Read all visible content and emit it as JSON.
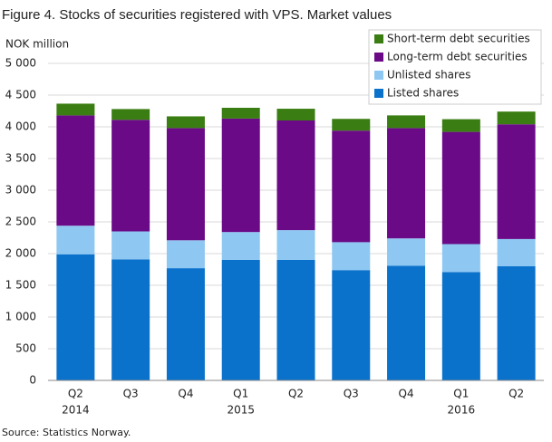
{
  "chart_data": {
    "type": "stacked_bar",
    "title": "Figure 4. Stocks of securities registered with VPS. Market values",
    "y_axis_label": "NOK million",
    "source": "Source: Statistics Norway.",
    "categories": [
      "Q2",
      "Q3",
      "Q4",
      "Q1",
      "Q2",
      "Q3",
      "Q4",
      "Q1",
      "Q2"
    ],
    "years": [
      "2014",
      null,
      null,
      "2015",
      null,
      null,
      null,
      "2016",
      null
    ],
    "series": [
      {
        "name": "Listed shares",
        "color": "#0b72cc",
        "values": [
          1990,
          1910,
          1770,
          1900,
          1900,
          1740,
          1810,
          1710,
          1800
        ]
      },
      {
        "name": "Unlisted shares",
        "color": "#8ec8f2",
        "values": [
          450,
          440,
          440,
          440,
          470,
          440,
          430,
          440,
          430
        ]
      },
      {
        "name": "Long-term debt securities",
        "color": "#6a0a87",
        "values": [
          1740,
          1760,
          1770,
          1790,
          1730,
          1760,
          1740,
          1770,
          1810
        ]
      },
      {
        "name": "Short-term debt securities",
        "color": "#3a7d12",
        "values": [
          185,
          170,
          185,
          170,
          185,
          185,
          200,
          200,
          200
        ]
      }
    ],
    "ylim": [
      0,
      5000
    ],
    "yticks": [
      0,
      500,
      {
        "value": 1000,
        "label": "1 000"
      },
      {
        "value": 1500,
        "label": "1 500"
      },
      {
        "value": 2000,
        "label": "2 000"
      },
      {
        "value": 2500,
        "label": "2 500"
      },
      {
        "value": 3000,
        "label": "3 000"
      },
      {
        "value": 3500,
        "label": "3 500"
      },
      {
        "value": 4000,
        "label": "4 000"
      },
      {
        "value": 4500,
        "label": "4 500"
      },
      {
        "value": 5000,
        "label": "5 000"
      }
    ],
    "grid": true,
    "legend": "top-right"
  }
}
